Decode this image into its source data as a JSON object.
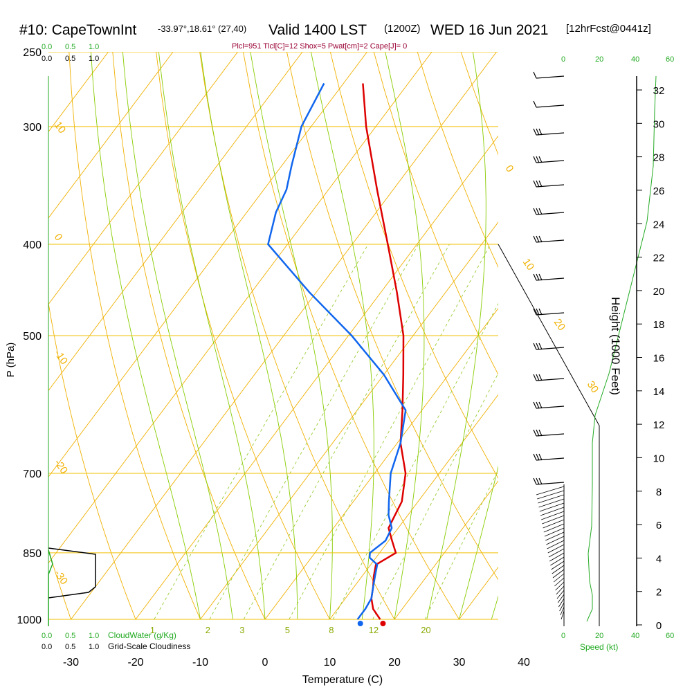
{
  "header": {
    "station": "#10: CapeTownInt",
    "coords": "-33.97°,18.61° (27,40)",
    "valid": "Valid 1400 LST",
    "utc": "(1200Z)",
    "date": "WED 16 Jun 2021",
    "forecast": "[12hrFcst@0441z]",
    "indices": "Plcl=951 Tlcl[C]=12 Shox=5 Pwat[cm]=2 Cape[J]= 0"
  },
  "scale_labels": {
    "cloudwater_ticks": [
      "0.0",
      "0.5",
      "1.0"
    ],
    "cloudwater_label": "CloudWater (g/Kg)",
    "cloudiness_ticks": [
      "0.0",
      "0.5",
      "1.0"
    ],
    "cloudiness_label": "Grid-Scale Cloudiness",
    "speed_ticks": [
      "0",
      "20",
      "40",
      "60"
    ],
    "speed_label": "Speed (kt)"
  },
  "chart_data": {
    "type": "line",
    "xlabel": "Temperature (C)",
    "ylabel": "P (hPa)",
    "y2label": "Height (1000 Feet)",
    "x_ticks": [
      "-30",
      "-20",
      "-10",
      "0",
      "10",
      "20",
      "30",
      "40"
    ],
    "y_ticks": [
      "250",
      "300",
      "400",
      "500",
      "700",
      "850",
      "1000"
    ],
    "y2_ticks": [
      "0",
      "2",
      "4",
      "6",
      "8",
      "10",
      "12",
      "14",
      "16",
      "18",
      "20",
      "22",
      "24",
      "26",
      "28",
      "30",
      "32"
    ],
    "isotherm_labels": [
      "10",
      "0",
      "-10",
      "-20",
      "-30",
      "0",
      "10",
      "20",
      "30"
    ],
    "mixing_ratio_labels": [
      "1",
      "2",
      "3",
      "5",
      "8",
      "12",
      "20"
    ],
    "temperature": {
      "color": "#dd0000",
      "pressure": [
        1000,
        975,
        950,
        925,
        900,
        875,
        850,
        825,
        800,
        775,
        750,
        700,
        650,
        600,
        550,
        500,
        450,
        400,
        350,
        300,
        270
      ],
      "values": [
        17.8,
        15.5,
        14.0,
        13.0,
        11.8,
        10.8,
        12.5,
        10.5,
        8.5,
        8.0,
        7.5,
        4.8,
        0.5,
        -3.0,
        -7.0,
        -11.5,
        -17.5,
        -24.5,
        -32.5,
        -41.5,
        -47.0
      ]
    },
    "dewpoint": {
      "color": "#1166ee",
      "pressure": [
        1000,
        975,
        950,
        925,
        900,
        875,
        860,
        850,
        825,
        800,
        775,
        750,
        700,
        650,
        600,
        550,
        500,
        450,
        400,
        370,
        350,
        330,
        300,
        270
      ],
      "values": [
        14.3,
        14.3,
        14.0,
        13.0,
        12.0,
        11.0,
        9.0,
        8.5,
        9.5,
        9.0,
        7.0,
        5.5,
        2.5,
        0.5,
        -2.5,
        -10.0,
        -19.5,
        -31.0,
        -43.0,
        -45.5,
        -46.5,
        -48.5,
        -51.5,
        -53.0
      ]
    },
    "surface_temperature": 17.8,
    "surface_dewpoint": 14.3,
    "cloudiness_label_top": [
      "0.0",
      "0.5",
      "1.0"
    ],
    "cloudwater_label_top": [
      "0.0",
      "0.5",
      "1.0"
    ],
    "wind_speed_ticks_top": [
      "0",
      "20",
      "40",
      "60"
    ],
    "colors": {
      "isobar": "#f0c000",
      "isotherm": "#f0b000",
      "dry_adiabat": "#f0b000",
      "moist_adiabat": "#88cc00",
      "mixing_ratio": "#99cc33",
      "speed_profile": "#22aa22",
      "indices_text": "#990033"
    }
  }
}
